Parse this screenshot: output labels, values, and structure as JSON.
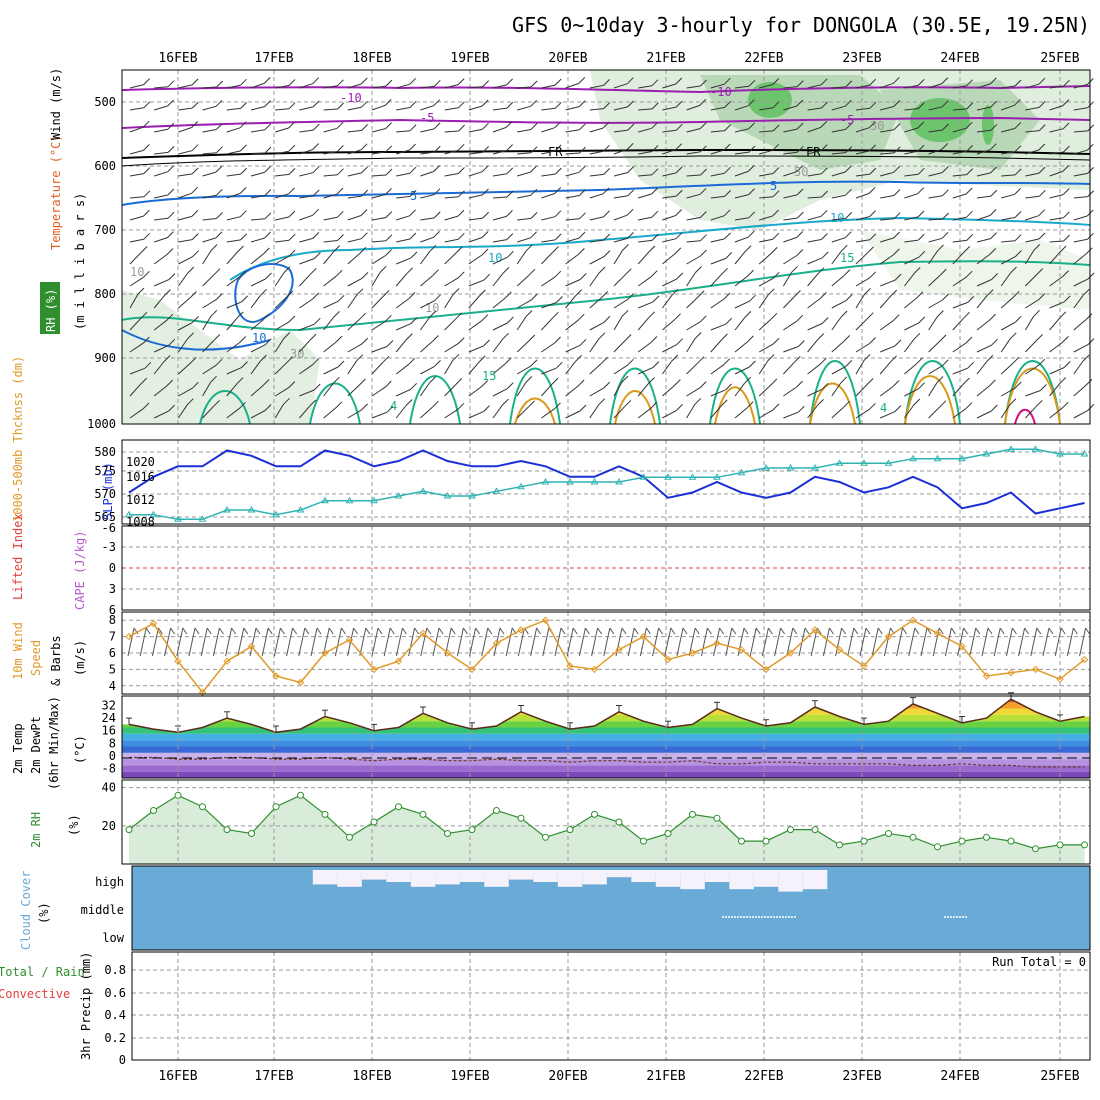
{
  "title": "GFS 0~10day 3-hourly for DONGOLA (30.5E, 19.25N)",
  "dates": [
    "16FEB",
    "17FEB",
    "18FEB",
    "19FEB",
    "20FEB",
    "21FEB",
    "22FEB",
    "23FEB",
    "24FEB",
    "25FEB"
  ],
  "colors": {
    "rh_green": "#2f8f2f",
    "contour_purple": "#9a1fb0",
    "contour_blue": "#1a6bd6",
    "contour_cyan": "#19a9c9",
    "contour_teal": "#19b08a",
    "contour_gold": "#d99a1a",
    "slp_blue": "#1a2fd6",
    "thick_cyan": "#2fb3b3",
    "wind_orange": "#e09a2a",
    "cloud_blue": "#6aaad6",
    "rh_fill": "#d9ebd9"
  },
  "panels": {
    "upper": {
      "axis_labels": {
        "wind": "Wind (m/s)",
        "temperature": "Temperature (°C)",
        "rh": "RH (%)",
        "mb": "(m i l l i b a r s)"
      },
      "yticks": [
        "500",
        "600",
        "700",
        "800",
        "900",
        "1000"
      ],
      "contour_labels": [
        "-10",
        "-5",
        "FR",
        "5",
        "10",
        "15",
        "-10",
        "-5",
        "FR",
        "5",
        "10",
        "15",
        "10",
        "10",
        "10",
        "30",
        "50",
        "30",
        "4",
        "4",
        "15",
        "10"
      ]
    },
    "pressure": {
      "label_thickness": "1000-500mb Thcknss (dm)",
      "label_slp": "SLP (mb)",
      "yticks_left": [
        "580",
        "575",
        "570",
        "565"
      ],
      "yticks_right": [
        "1020",
        "1016",
        "1012",
        "1008"
      ]
    },
    "lifted": {
      "label_li": "Lifted Index",
      "label_cape": "CAPE (J/kg)",
      "yticks": [
        "-6",
        "-3",
        "0",
        "3",
        "6"
      ]
    },
    "wind10m": {
      "label1": "10m Wind",
      "label2": "Speed",
      "label3": "& Barbs",
      "label_units": "(m/s)",
      "yticks": [
        "8",
        "7",
        "6",
        "5",
        "4"
      ]
    },
    "temp": {
      "label1": "2m Temp",
      "label2": "2m DewPt",
      "label3": "(6hr Min/Max)",
      "label_units": "(°C)",
      "yticks": [
        "32",
        "24",
        "16",
        "8",
        "0",
        "-8"
      ]
    },
    "rh2m": {
      "label1": "2m RH",
      "label_units": "(%)",
      "yticks": [
        "40",
        "20"
      ]
    },
    "cloud": {
      "label1": "Cloud Cover",
      "label_units": "(%)",
      "levels": [
        "high",
        "middle",
        "low"
      ]
    },
    "precip": {
      "label_total": "Total / Rain",
      "label_conv": "Convective",
      "label_y": "3hr Precip (mm)",
      "yticks": [
        "0.8",
        "0.6",
        "0.4",
        "0.2",
        "0"
      ],
      "run_total": "Run Total = 0"
    }
  },
  "chart_data": [
    {
      "type": "line",
      "name": "SLP and 1000-500mb thickness",
      "x": [
        "15FEB 12",
        "15FEB 18",
        "16FEB 00",
        "16FEB 06",
        "16FEB 12",
        "16FEB 18",
        "17FEB 00",
        "17FEB 06",
        "17FEB 12",
        "17FEB 18",
        "18FEB 00",
        "18FEB 06",
        "18FEB 12",
        "18FEB 18",
        "19FEB 00",
        "19FEB 06",
        "19FEB 12",
        "19FEB 18",
        "20FEB 00",
        "20FEB 06",
        "20FEB 12",
        "20FEB 18",
        "21FEB 00",
        "21FEB 06",
        "21FEB 12",
        "21FEB 18",
        "22FEB 00",
        "22FEB 06",
        "22FEB 12",
        "22FEB 18",
        "23FEB 00",
        "23FEB 06",
        "23FEB 12",
        "23FEB 18",
        "24FEB 00",
        "24FEB 06",
        "24FEB 12",
        "24FEB 18",
        "25FEB 00",
        "25FEB 06"
      ],
      "series": [
        {
          "name": "SLP (mb)",
          "values": [
            1013,
            1016,
            1018,
            1018,
            1021,
            1020,
            1018,
            1018,
            1021,
            1020,
            1018,
            1019,
            1021,
            1019,
            1018,
            1018,
            1019,
            1018,
            1016,
            1016,
            1018,
            1016,
            1012,
            1013,
            1015,
            1013,
            1012,
            1013,
            1016,
            1015,
            1013,
            1014,
            1016,
            1014,
            1010,
            1011,
            1013,
            1009,
            1010,
            1011
          ]
        },
        {
          "name": "1000-500mb Thcknss (dm)",
          "values": [
            566,
            566,
            565,
            565,
            567,
            567,
            566,
            567,
            569,
            569,
            569,
            570,
            571,
            570,
            570,
            571,
            572,
            573,
            573,
            573,
            573,
            574,
            574,
            574,
            574,
            575,
            576,
            576,
            576,
            577,
            577,
            577,
            578,
            578,
            578,
            579,
            580,
            580,
            579,
            579
          ]
        }
      ],
      "ylim_left": [
        564,
        582
      ],
      "ylim_right": [
        1007,
        1023
      ]
    },
    {
      "type": "line",
      "name": "10m wind speed",
      "x": [
        "15FEB 12",
        "15FEB 18",
        "16FEB 00",
        "16FEB 06",
        "16FEB 12",
        "16FEB 18",
        "17FEB 00",
        "17FEB 06",
        "17FEB 12",
        "17FEB 18",
        "18FEB 00",
        "18FEB 06",
        "18FEB 12",
        "18FEB 18",
        "19FEB 00",
        "19FEB 06",
        "19FEB 12",
        "19FEB 18",
        "20FEB 00",
        "20FEB 06",
        "20FEB 12",
        "20FEB 18",
        "21FEB 00",
        "21FEB 06",
        "21FEB 12",
        "21FEB 18",
        "22FEB 00",
        "22FEB 06",
        "22FEB 12",
        "22FEB 18",
        "23FEB 00",
        "23FEB 06",
        "23FEB 12",
        "23FEB 18",
        "24FEB 00",
        "24FEB 06",
        "24FEB 12",
        "24FEB 18",
        "25FEB 00",
        "25FEB 06"
      ],
      "series": [
        {
          "name": "10m Wind Speed (m/s)",
          "values": [
            7.0,
            7.8,
            5.5,
            3.6,
            5.5,
            6.4,
            4.6,
            4.2,
            6.0,
            6.8,
            5.0,
            5.5,
            7.2,
            6.0,
            5.0,
            6.6,
            7.4,
            8.0,
            5.2,
            5.0,
            6.2,
            7.0,
            5.6,
            6.0,
            6.6,
            6.2,
            5.0,
            6.0,
            7.4,
            6.2,
            5.2,
            7.0,
            8.0,
            7.2,
            6.4,
            4.6,
            4.8,
            5.0,
            4.4,
            5.6
          ]
        }
      ],
      "ylim": [
        3.5,
        8.5
      ]
    },
    {
      "type": "area",
      "name": "2m temperature and dewpoint",
      "x": [
        "15FEB 12",
        "15FEB 18",
        "16FEB 00",
        "16FEB 06",
        "16FEB 12",
        "16FEB 18",
        "17FEB 00",
        "17FEB 06",
        "17FEB 12",
        "17FEB 18",
        "18FEB 00",
        "18FEB 06",
        "18FEB 12",
        "18FEB 18",
        "19FEB 00",
        "19FEB 06",
        "19FEB 12",
        "19FEB 18",
        "20FEB 00",
        "20FEB 06",
        "20FEB 12",
        "20FEB 18",
        "21FEB 00",
        "21FEB 06",
        "21FEB 12",
        "21FEB 18",
        "22FEB 00",
        "22FEB 06",
        "22FEB 12",
        "22FEB 18",
        "23FEB 00",
        "23FEB 06",
        "23FEB 12",
        "23FEB 18",
        "24FEB 00",
        "24FEB 06",
        "24FEB 12",
        "24FEB 18",
        "25FEB 00",
        "25FEB 06"
      ],
      "series": [
        {
          "name": "2m Temp (°C)",
          "values": [
            20,
            17,
            15,
            18,
            24,
            20,
            15,
            17,
            25,
            21,
            16,
            18,
            27,
            21,
            17,
            19,
            28,
            22,
            17,
            19,
            28,
            22,
            18,
            20,
            30,
            24,
            19,
            21,
            31,
            25,
            20,
            22,
            33,
            27,
            21,
            24,
            36,
            28,
            22,
            25
          ]
        },
        {
          "name": "2m DewPt (°C)",
          "values": [
            -1,
            -1,
            -2,
            -2,
            -1,
            -1,
            -2,
            -2,
            -1,
            -2,
            -3,
            -2,
            -2,
            -3,
            -3,
            -2,
            -3,
            -3,
            -4,
            -3,
            -3,
            -4,
            -4,
            -3,
            -5,
            -5,
            -4,
            -4,
            -5,
            -5,
            -5,
            -5,
            -6,
            -6,
            -5,
            -6,
            -6,
            -7,
            -7,
            -7
          ]
        }
      ],
      "ylim": [
        -14,
        38
      ]
    },
    {
      "type": "area",
      "name": "2m relative humidity",
      "x": [
        "15FEB 12",
        "15FEB 18",
        "16FEB 00",
        "16FEB 06",
        "16FEB 12",
        "16FEB 18",
        "17FEB 00",
        "17FEB 06",
        "17FEB 12",
        "17FEB 18",
        "18FEB 00",
        "18FEB 06",
        "18FEB 12",
        "18FEB 18",
        "19FEB 00",
        "19FEB 06",
        "19FEB 12",
        "19FEB 18",
        "20FEB 00",
        "20FEB 06",
        "20FEB 12",
        "20FEB 18",
        "21FEB 00",
        "21FEB 06",
        "21FEB 12",
        "21FEB 18",
        "22FEB 00",
        "22FEB 06",
        "22FEB 12",
        "22FEB 18",
        "23FEB 00",
        "23FEB 06",
        "23FEB 12",
        "23FEB 18",
        "24FEB 00",
        "24FEB 06",
        "24FEB 12",
        "24FEB 18",
        "25FEB 00",
        "25FEB 06"
      ],
      "series": [
        {
          "name": "2m RH (%)",
          "values": [
            18,
            28,
            36,
            30,
            18,
            16,
            30,
            36,
            26,
            14,
            22,
            30,
            26,
            16,
            18,
            28,
            24,
            14,
            18,
            26,
            22,
            12,
            16,
            26,
            24,
            12,
            12,
            18,
            18,
            10,
            12,
            16,
            14,
            9,
            12,
            14,
            12,
            8,
            10,
            10
          ]
        }
      ],
      "ylim": [
        0,
        44
      ]
    },
    {
      "type": "bar",
      "name": "Cloud cover",
      "x": [
        "15FEB 12",
        "15FEB 18",
        "16FEB 00",
        "16FEB 06",
        "16FEB 12",
        "16FEB 18",
        "17FEB 00",
        "17FEB 06",
        "17FEB 12",
        "17FEB 18",
        "18FEB 00",
        "18FEB 06",
        "18FEB 12",
        "18FEB 18",
        "19FEB 00",
        "19FEB 06",
        "19FEB 12",
        "19FEB 18",
        "20FEB 00",
        "20FEB 06",
        "20FEB 12",
        "20FEB 18",
        "21FEB 00",
        "21FEB 06",
        "21FEB 12",
        "21FEB 18",
        "22FEB 00",
        "22FEB 06",
        "22FEB 12",
        "22FEB 18",
        "23FEB 00",
        "23FEB 06",
        "23FEB 12",
        "23FEB 18",
        "24FEB 00",
        "24FEB 06",
        "24FEB 12",
        "24FEB 18",
        "25FEB 00",
        "25FEB 06"
      ],
      "series": [
        {
          "name": "high",
          "values": [
            100,
            100,
            100,
            100,
            100,
            100,
            100,
            100,
            40,
            30,
            60,
            50,
            30,
            40,
            50,
            30,
            60,
            50,
            30,
            40,
            70,
            50,
            30,
            20,
            50,
            20,
            30,
            10,
            20,
            100,
            100,
            100,
            100,
            100,
            100,
            100,
            100,
            100,
            100,
            100
          ]
        }
      ],
      "ylim": [
        0,
        100
      ]
    },
    {
      "type": "bar",
      "name": "3hr precipitation",
      "x": [
        "16FEB",
        "17FEB",
        "18FEB",
        "19FEB",
        "20FEB",
        "21FEB",
        "22FEB",
        "23FEB",
        "24FEB",
        "25FEB"
      ],
      "series": [
        {
          "name": "3hr Precip (mm)",
          "values": [
            0,
            0,
            0,
            0,
            0,
            0,
            0,
            0,
            0,
            0
          ]
        }
      ],
      "ylim": [
        0,
        1
      ]
    }
  ]
}
